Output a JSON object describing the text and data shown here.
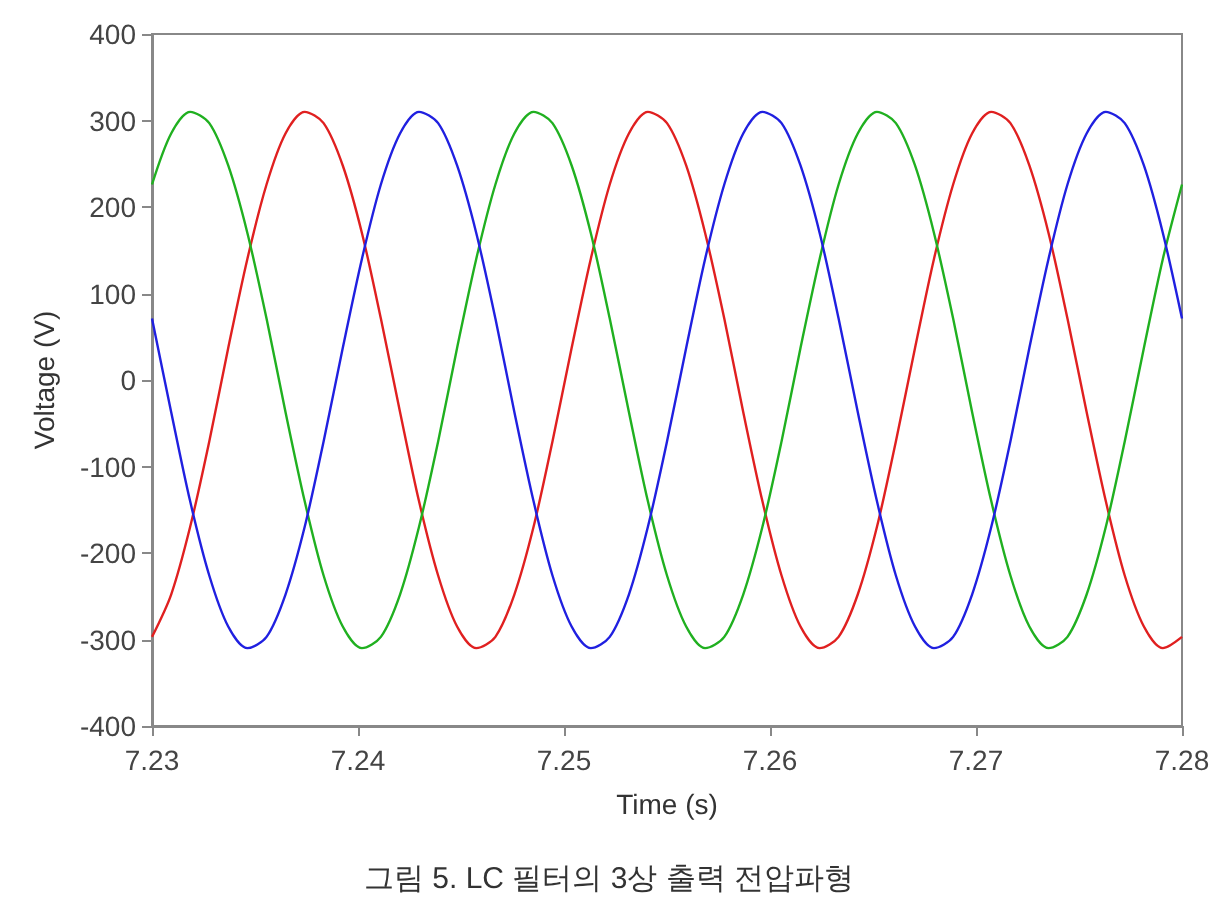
{
  "chart_data": {
    "type": "line",
    "xlabel": "Time (s)",
    "ylabel": "Voltage (V)",
    "annotations": [
      "그림 5. LC 필터의 3상 출력 전압파형"
    ],
    "x": [
      7.23,
      7.23093,
      7.23185,
      7.23278,
      7.2337,
      7.23463,
      7.23556,
      7.23648,
      7.23741,
      7.23833,
      7.23926,
      7.24019,
      7.24111,
      7.24204,
      7.24296,
      7.24389,
      7.24481,
      7.24574,
      7.24667,
      7.24759,
      7.24852,
      7.24944,
      7.25037,
      7.2513,
      7.25222,
      7.25315,
      7.25407,
      7.255,
      7.25593,
      7.25685,
      7.25778,
      7.2587,
      7.25963,
      7.26056,
      7.26148,
      7.26241,
      7.26333,
      7.26426,
      7.26519,
      7.26611,
      7.26704,
      7.26796,
      7.26889,
      7.26981,
      7.27074,
      7.27167,
      7.27259,
      7.27352,
      7.27444,
      7.27537,
      7.2763,
      7.27722,
      7.27815,
      7.27907,
      7.28
    ],
    "series": [
      {
        "color": "#e02020",
        "values": [
          -297,
          -248,
          -170,
          -71,
          37,
          140,
          226,
          285,
          310,
          297,
          248,
          170,
          71,
          -37,
          -140,
          -226,
          -285,
          -310,
          -297,
          -248,
          -170,
          -71,
          37,
          140,
          226,
          285,
          310,
          297,
          248,
          170,
          71,
          -37,
          -140,
          -226,
          -285,
          -310,
          -297,
          -248,
          -170,
          -71,
          37,
          140,
          226,
          285,
          310,
          297,
          248,
          170,
          71,
          -37,
          -140,
          -226,
          -285,
          -310,
          -297
        ]
      },
      {
        "color": "#20b020",
        "values": [
          226,
          285,
          310,
          297,
          248,
          170,
          71,
          -37,
          -140,
          -226,
          -285,
          -310,
          -297,
          -248,
          -170,
          -71,
          37,
          140,
          226,
          285,
          310,
          297,
          248,
          170,
          71,
          -37,
          -140,
          -226,
          -285,
          -310,
          -297,
          -248,
          -170,
          -71,
          37,
          140,
          226,
          285,
          310,
          297,
          248,
          170,
          71,
          -37,
          -140,
          -226,
          -285,
          -310,
          -297,
          -248,
          -170,
          -71,
          37,
          140,
          226
        ]
      },
      {
        "color": "#2020e0",
        "values": [
          71,
          -37,
          -140,
          -226,
          -285,
          -310,
          -297,
          -248,
          -170,
          -71,
          37,
          140,
          226,
          285,
          310,
          297,
          248,
          170,
          71,
          -37,
          -140,
          -226,
          -285,
          -310,
          -297,
          -248,
          -170,
          -71,
          37,
          140,
          226,
          285,
          310,
          297,
          248,
          170,
          71,
          -37,
          -140,
          -226,
          -285,
          -310,
          -297,
          -248,
          -170,
          -71,
          37,
          140,
          226,
          285,
          310,
          297,
          248,
          170,
          71
        ]
      }
    ],
    "xlim": [
      7.23,
      7.28
    ],
    "ylim": [
      -400,
      400
    ],
    "xticks": [
      7.23,
      7.24,
      7.25,
      7.26,
      7.27,
      7.28
    ],
    "yticks": [
      -400,
      -300,
      -200,
      -100,
      0,
      100,
      200,
      300,
      400
    ],
    "marker": "none"
  }
}
